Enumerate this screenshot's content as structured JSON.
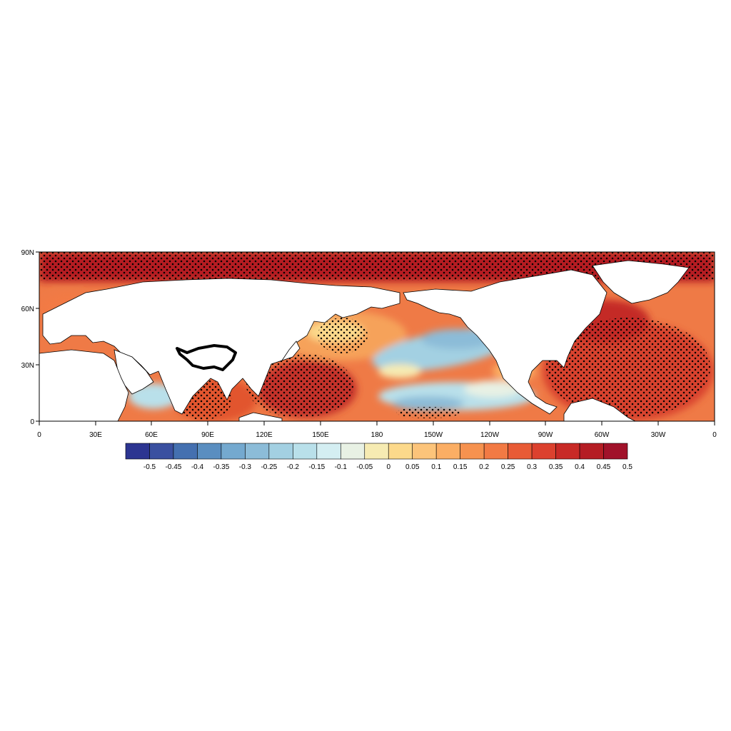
{
  "map": {
    "projection": "cylindrical-equidistant",
    "lon_range": [
      0,
      360
    ],
    "lat_range": [
      0,
      90
    ],
    "ocean_colored_land_white": true,
    "stippling": "significance-dots",
    "highlight_contour": "Tibetan Plateau outline (thick black)"
  },
  "axes": {
    "y_ticks": [
      "90N",
      "60N",
      "30N",
      "0"
    ],
    "x_ticks": [
      "0",
      "30E",
      "60E",
      "90E",
      "120E",
      "150E",
      "180",
      "150W",
      "120W",
      "90W",
      "60W",
      "30W",
      "0"
    ]
  },
  "colorbar": {
    "labels": [
      "-0.5",
      "-0.45",
      "-0.4",
      "-0.35",
      "-0.3",
      "-0.25",
      "-0.2",
      "-0.15",
      "-0.1",
      "-0.05",
      "0",
      "0.05",
      "0.1",
      "0.15",
      "0.2",
      "0.25",
      "0.3",
      "0.35",
      "0.4",
      "0.45",
      "0.5"
    ],
    "colors": [
      "#2c3591",
      "#3a50a0",
      "#4470b0",
      "#5a8ec0",
      "#74a9cf",
      "#8cbcd8",
      "#a3d0e2",
      "#b9e0ea",
      "#d4eef2",
      "#e8f1e4",
      "#f6ebb2",
      "#fcd98b",
      "#fcc47a",
      "#fbae64",
      "#f6924f",
      "#f27a44",
      "#e85b36",
      "#dc412e",
      "#c82a26",
      "#b51d24",
      "#a1122a"
    ]
  },
  "colors": {
    "land": "#ffffff",
    "coast": "#000000",
    "stipple": "#000000"
  }
}
